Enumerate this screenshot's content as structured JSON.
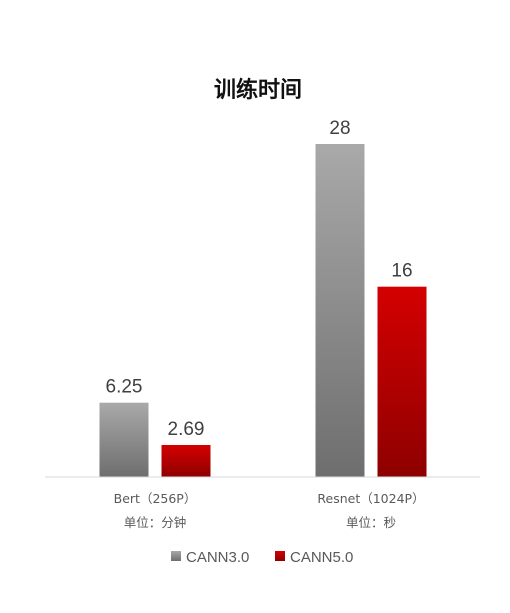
{
  "chart_data": {
    "type": "bar",
    "title": "训练时间",
    "categories": [
      "Bert（256P）",
      "Resnet（1024P）"
    ],
    "units": [
      "单位：分钟",
      "单位：秒"
    ],
    "series": [
      {
        "name": "CANN3.0",
        "values": [
          6.25,
          28
        ],
        "labels": [
          "6.25",
          "28"
        ],
        "color": "#8c8c8c"
      },
      {
        "name": "CANN5.0",
        "values": [
          2.69,
          16
        ],
        "labels": [
          "2.69",
          "16"
        ],
        "color": "#c00000"
      }
    ],
    "ylim": [
      0,
      28
    ],
    "grid": false,
    "legend_position": "bottom"
  }
}
